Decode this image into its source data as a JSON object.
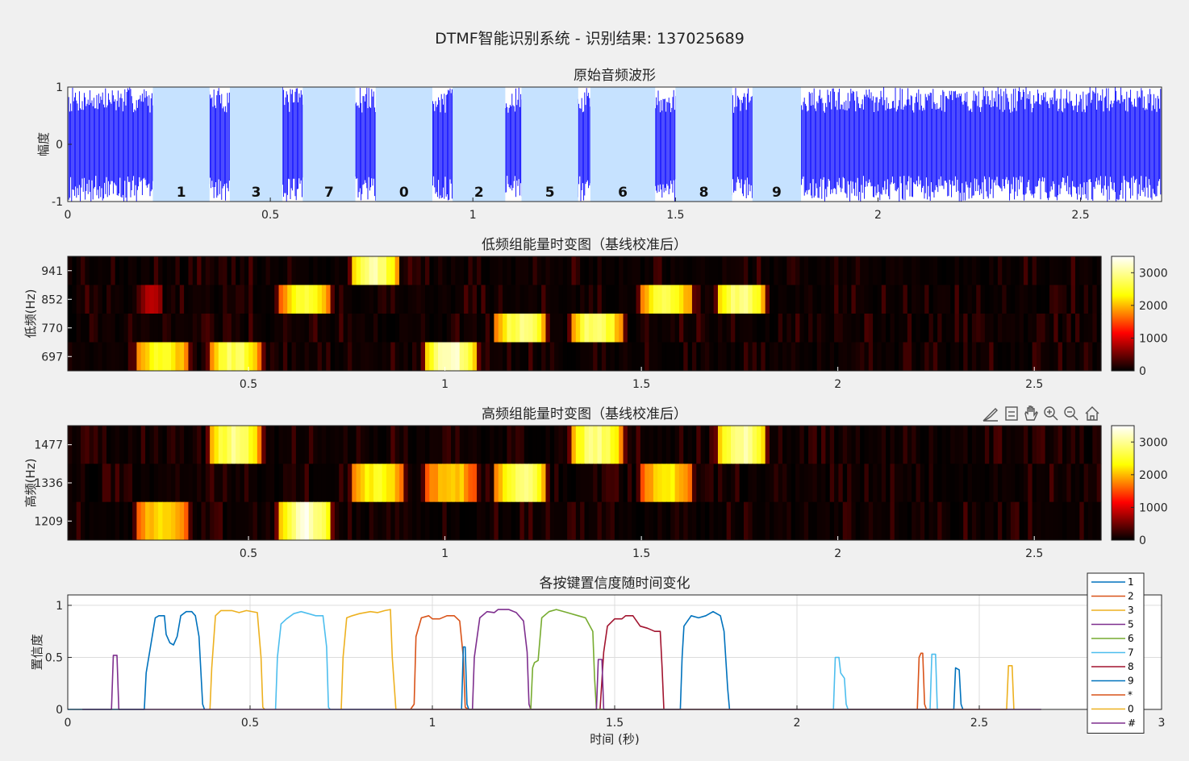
{
  "figure_title": "DTMF智能识别系统 - 识别结果: 137025689",
  "toolbar_icons": [
    "brush-icon",
    "datatip-icon",
    "pan-icon",
    "zoom-in-icon",
    "zoom-out-icon",
    "home-icon"
  ],
  "colors": {
    "waveform": "#0000ff",
    "segment": "#c6e2ff",
    "figure_bg": "#f0f0f0",
    "axes_bg": "#ffffff"
  },
  "chart_data": [
    {
      "type": "line",
      "title": "原始音频波形",
      "ylabel": "幅度",
      "xlabel": "",
      "xlim": [
        0,
        2.7
      ],
      "ylim": [
        -1,
        1
      ],
      "xticks": [
        0,
        0.5,
        1,
        1.5,
        2,
        2.5
      ],
      "yticks": [
        -1,
        0,
        1
      ],
      "series": [
        {
          "description": "noisy waveform",
          "amplitude_range": [
            -1,
            1
          ]
        }
      ],
      "segments": [
        {
          "start": 0.21,
          "end": 0.35,
          "digit": "1"
        },
        {
          "start": 0.4,
          "end": 0.53,
          "digit": "3"
        },
        {
          "start": 0.58,
          "end": 0.71,
          "digit": "7"
        },
        {
          "start": 0.76,
          "end": 0.9,
          "digit": "0"
        },
        {
          "start": 0.95,
          "end": 1.08,
          "digit": "2"
        },
        {
          "start": 1.12,
          "end": 1.26,
          "digit": "5"
        },
        {
          "start": 1.29,
          "end": 1.45,
          "digit": "6"
        },
        {
          "start": 1.5,
          "end": 1.64,
          "digit": "8"
        },
        {
          "start": 1.69,
          "end": 1.81,
          "digit": "9"
        }
      ],
      "grid": false
    },
    {
      "type": "heatmap",
      "title": "低频组能量时变图（基线校准后）",
      "ylabel": "低频(Hz)",
      "xlim": [
        0.04,
        2.67
      ],
      "xticks": [
        0.5,
        1,
        1.5,
        2,
        2.5
      ],
      "rows": [
        941,
        852,
        770,
        697
      ],
      "blobs": [
        {
          "row": 941,
          "start": 0.76,
          "end": 0.88,
          "peak": 3200
        },
        {
          "row": 852,
          "start": 0.58,
          "end": 0.71,
          "peak": 2600
        },
        {
          "row": 852,
          "start": 1.5,
          "end": 1.63,
          "peak": 2800
        },
        {
          "row": 852,
          "start": 1.69,
          "end": 1.82,
          "peak": 3000
        },
        {
          "row": 852,
          "start": 0.23,
          "end": 0.28,
          "peak": 900
        },
        {
          "row": 770,
          "start": 1.13,
          "end": 1.26,
          "peak": 3000
        },
        {
          "row": 770,
          "start": 1.32,
          "end": 1.45,
          "peak": 3000
        },
        {
          "row": 697,
          "start": 0.21,
          "end": 0.35,
          "peak": 2600
        },
        {
          "row": 697,
          "start": 0.4,
          "end": 0.53,
          "peak": 2900
        },
        {
          "row": 697,
          "start": 0.95,
          "end": 1.08,
          "peak": 3400
        }
      ],
      "colorbar": {
        "min": 0,
        "max": 3500,
        "ticks": [
          0,
          1000,
          2000,
          3000
        ]
      }
    },
    {
      "type": "heatmap",
      "title": "高频组能量时变图（基线校准后）",
      "ylabel": "高频(Hz)",
      "xlim": [
        0.04,
        2.67
      ],
      "xticks": [
        0.5,
        1,
        1.5,
        2,
        2.5
      ],
      "rows": [
        1477,
        1336,
        1209
      ],
      "blobs": [
        {
          "row": 1477,
          "start": 0.4,
          "end": 0.53,
          "peak": 3000
        },
        {
          "row": 1477,
          "start": 1.32,
          "end": 1.45,
          "peak": 3100
        },
        {
          "row": 1477,
          "start": 1.69,
          "end": 1.82,
          "peak": 3200
        },
        {
          "row": 1336,
          "start": 0.76,
          "end": 0.9,
          "peak": 2500
        },
        {
          "row": 1336,
          "start": 0.95,
          "end": 1.08,
          "peak": 2300
        },
        {
          "row": 1336,
          "start": 1.13,
          "end": 1.26,
          "peak": 3000
        },
        {
          "row": 1336,
          "start": 1.5,
          "end": 1.63,
          "peak": 2400
        },
        {
          "row": 1209,
          "start": 0.21,
          "end": 0.35,
          "peak": 2300
        },
        {
          "row": 1209,
          "start": 0.58,
          "end": 0.71,
          "peak": 3400
        }
      ],
      "colorbar": {
        "min": 0,
        "max": 3500,
        "ticks": [
          0,
          1000,
          2000,
          3000
        ]
      }
    },
    {
      "type": "line",
      "title": "各按键置信度随时间变化",
      "xlabel": "时间 (秒)",
      "ylabel": "置信度",
      "xlim": [
        0,
        3
      ],
      "ylim": [
        0,
        1.1
      ],
      "xticks": [
        0,
        0.5,
        1,
        1.5,
        2,
        2.5,
        3
      ],
      "yticks": [
        0,
        0.5,
        1
      ],
      "grid": true,
      "legend_position": "top-right",
      "series": [
        {
          "name": "1",
          "color": "#0072bd",
          "points": [
            [
              0,
              0
            ],
            [
              0.21,
              0
            ],
            [
              0.215,
              0.35
            ],
            [
              0.24,
              0.88
            ],
            [
              0.25,
              0.9
            ],
            [
              0.265,
              0.9
            ],
            [
              0.27,
              0.72
            ],
            [
              0.28,
              0.64
            ],
            [
              0.29,
              0.62
            ],
            [
              0.3,
              0.7
            ],
            [
              0.31,
              0.9
            ],
            [
              0.325,
              0.94
            ],
            [
              0.34,
              0.94
            ],
            [
              0.35,
              0.9
            ],
            [
              0.36,
              0.7
            ],
            [
              0.37,
              0.05
            ],
            [
              0.375,
              0
            ]
          ]
        },
        {
          "name": "2",
          "color": "#d95319",
          "points": [
            [
              0.94,
              0
            ],
            [
              0.95,
              0.05
            ],
            [
              0.955,
              0.7
            ],
            [
              0.97,
              0.88
            ],
            [
              0.99,
              0.9
            ],
            [
              1.0,
              0.87
            ],
            [
              1.02,
              0.87
            ],
            [
              1.04,
              0.9
            ],
            [
              1.06,
              0.9
            ],
            [
              1.075,
              0.85
            ],
            [
              1.085,
              0.5
            ],
            [
              1.09,
              0.02
            ],
            [
              1.1,
              0
            ]
          ]
        },
        {
          "name": "3",
          "color": "#edb120",
          "points": [
            [
              0.39,
              0
            ],
            [
              0.395,
              0.4
            ],
            [
              0.405,
              0.9
            ],
            [
              0.42,
              0.95
            ],
            [
              0.45,
              0.95
            ],
            [
              0.47,
              0.93
            ],
            [
              0.49,
              0.95
            ],
            [
              0.52,
              0.93
            ],
            [
              0.53,
              0.5
            ],
            [
              0.535,
              0.02
            ],
            [
              0.54,
              0
            ]
          ]
        },
        {
          "name": "5",
          "color": "#7e2f8e",
          "points": [
            [
              1.11,
              0
            ],
            [
              1.115,
              0.5
            ],
            [
              1.13,
              0.88
            ],
            [
              1.15,
              0.94
            ],
            [
              1.17,
              0.93
            ],
            [
              1.18,
              0.96
            ],
            [
              1.21,
              0.96
            ],
            [
              1.23,
              0.93
            ],
            [
              1.25,
              0.85
            ],
            [
              1.26,
              0.55
            ],
            [
              1.265,
              0.05
            ],
            [
              1.27,
              0
            ]
          ]
        },
        {
          "name": "6",
          "color": "#77ac30",
          "points": [
            [
              1.27,
              0
            ],
            [
              1.275,
              0.4
            ],
            [
              1.28,
              0.45
            ],
            [
              1.29,
              0.47
            ],
            [
              1.3,
              0.88
            ],
            [
              1.32,
              0.94
            ],
            [
              1.34,
              0.96
            ],
            [
              1.37,
              0.93
            ],
            [
              1.4,
              0.9
            ],
            [
              1.42,
              0.88
            ],
            [
              1.44,
              0.75
            ],
            [
              1.445,
              0.3
            ],
            [
              1.45,
              0
            ]
          ]
        },
        {
          "name": "7",
          "color": "#4dbeee",
          "points": [
            [
              0.57,
              0
            ],
            [
              0.575,
              0.5
            ],
            [
              0.585,
              0.82
            ],
            [
              0.6,
              0.87
            ],
            [
              0.62,
              0.92
            ],
            [
              0.64,
              0.94
            ],
            [
              0.66,
              0.92
            ],
            [
              0.68,
              0.9
            ],
            [
              0.7,
              0.9
            ],
            [
              0.71,
              0.6
            ],
            [
              0.715,
              0.02
            ],
            [
              0.72,
              0
            ],
            [
              2.1,
              0
            ],
            [
              2.105,
              0.5
            ],
            [
              2.115,
              0.5
            ],
            [
              2.12,
              0.35
            ],
            [
              2.13,
              0.3
            ],
            [
              2.135,
              0.05
            ],
            [
              2.14,
              0
            ],
            [
              2.365,
              0
            ],
            [
              2.37,
              0.53
            ],
            [
              2.38,
              0.53
            ],
            [
              2.385,
              0
            ]
          ]
        },
        {
          "name": "8",
          "color": "#a2142f",
          "points": [
            [
              1.46,
              0
            ],
            [
              1.47,
              0.55
            ],
            [
              1.48,
              0.8
            ],
            [
              1.5,
              0.87
            ],
            [
              1.52,
              0.87
            ],
            [
              1.53,
              0.9
            ],
            [
              1.55,
              0.9
            ],
            [
              1.57,
              0.8
            ],
            [
              1.59,
              0.78
            ],
            [
              1.61,
              0.75
            ],
            [
              1.625,
              0.75
            ],
            [
              1.63,
              0.4
            ],
            [
              1.635,
              0
            ]
          ]
        },
        {
          "name": "9",
          "color": "#0072bd",
          "points": [
            [
              1.08,
              0
            ],
            [
              1.085,
              0.6
            ],
            [
              1.09,
              0.6
            ],
            [
              1.095,
              0.05
            ],
            [
              1.1,
              0
            ],
            [
              1.68,
              0
            ],
            [
              1.685,
              0.5
            ],
            [
              1.69,
              0.8
            ],
            [
              1.71,
              0.9
            ],
            [
              1.73,
              0.88
            ],
            [
              1.75,
              0.9
            ],
            [
              1.77,
              0.94
            ],
            [
              1.79,
              0.9
            ],
            [
              1.8,
              0.75
            ],
            [
              1.81,
              0.2
            ],
            [
              1.815,
              0
            ],
            [
              2.43,
              0
            ],
            [
              2.435,
              0.4
            ],
            [
              2.445,
              0.38
            ],
            [
              2.45,
              0.05
            ],
            [
              2.455,
              0
            ]
          ]
        },
        {
          "name": "*",
          "color": "#d95319",
          "points": [
            [
              2.33,
              0
            ],
            [
              2.335,
              0.5
            ],
            [
              2.34,
              0.54
            ],
            [
              2.345,
              0.54
            ],
            [
              2.35,
              0.05
            ],
            [
              2.355,
              0
            ]
          ]
        },
        {
          "name": "0",
          "color": "#edb120",
          "points": [
            [
              0.75,
              0
            ],
            [
              0.755,
              0.5
            ],
            [
              0.765,
              0.88
            ],
            [
              0.78,
              0.9
            ],
            [
              0.8,
              0.92
            ],
            [
              0.83,
              0.94
            ],
            [
              0.85,
              0.93
            ],
            [
              0.87,
              0.95
            ],
            [
              0.885,
              0.96
            ],
            [
              0.89,
              0.5
            ],
            [
              0.9,
              0
            ],
            [
              2.575,
              0
            ],
            [
              2.58,
              0.42
            ],
            [
              2.59,
              0.42
            ],
            [
              2.595,
              0
            ]
          ]
        },
        {
          "name": "#",
          "color": "#7e2f8e",
          "points": [
            [
              0.04,
              0
            ],
            [
              0.12,
              0
            ],
            [
              0.125,
              0.52
            ],
            [
              0.135,
              0.52
            ],
            [
              0.14,
              0
            ],
            [
              1.45,
              0
            ],
            [
              1.455,
              0.48
            ],
            [
              1.465,
              0.48
            ],
            [
              1.47,
              0
            ],
            [
              2.67,
              0
            ]
          ]
        }
      ]
    }
  ]
}
